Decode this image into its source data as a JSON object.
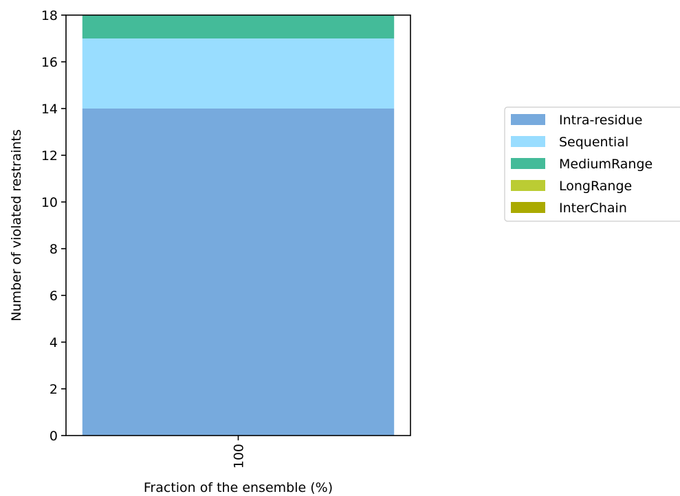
{
  "chart_data": {
    "type": "bar",
    "stacked": true,
    "categories": [
      "100"
    ],
    "series": [
      {
        "name": "Intra-residue",
        "color": "#77aadd",
        "values": [
          14
        ]
      },
      {
        "name": "Sequential",
        "color": "#99ddff",
        "values": [
          3
        ]
      },
      {
        "name": "MediumRange",
        "color": "#44bb99",
        "values": [
          1
        ]
      },
      {
        "name": "LongRange",
        "color": "#bbcc33",
        "values": [
          0
        ]
      },
      {
        "name": "InterChain",
        "color": "#aaaa00",
        "values": [
          0
        ]
      }
    ],
    "xlabel": "Fraction of the ensemble (%)",
    "ylabel": "Number of violated restraints",
    "ylim": [
      0,
      18
    ],
    "yticks": [
      0,
      2,
      4,
      6,
      8,
      10,
      12,
      14,
      16,
      18
    ],
    "x_tick_rotation": "vertical",
    "grid": false,
    "legend_placement": "outside right"
  }
}
